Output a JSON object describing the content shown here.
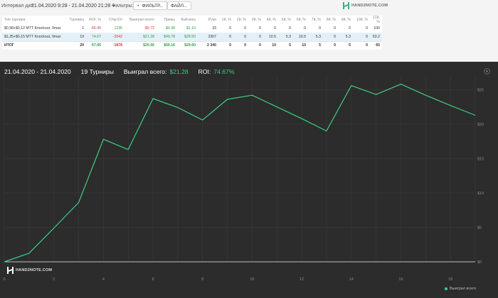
{
  "toolbar": {
    "interval_label": "Интервал дат:",
    "interval_value": "21.04.2020 9:28 - 21.04.2020 21:28",
    "filters_label": "Фильтры:",
    "filter_button": "ФИЛЬТР...",
    "file_button": "ФАЙЛ...",
    "logo_text": "HAND2NOTE.COM"
  },
  "table": {
    "headers": [
      "Тип турнира",
      "Турниры",
      "ROI, %",
      "Chip EV",
      "Выиграл всего",
      "Призы",
      "Бай-ины",
      "Руки",
      "1й, %",
      "2й, %",
      "3й, %",
      "4й, %",
      "5й, %",
      "6й, %",
      "7й, %",
      "8й, %",
      "9й, %",
      "10й, %",
      "11й, %"
    ],
    "rows": [
      [
        "$0,98+$0,12 MTT Knockout, 9max",
        "1",
        "-65.45",
        "1236",
        "-$0.72",
        "$0.38",
        "$1.10",
        "33",
        "0",
        "0",
        "0",
        "0",
        "0",
        "0",
        "0",
        "0",
        "0",
        "0",
        "100"
      ],
      [
        "$1,35+$0,15 MTT Knockout, 9max",
        "19",
        "74.67",
        "-2042",
        "$21.28",
        "$49.78",
        "$28.50",
        "2307",
        "0",
        "0",
        "0",
        "10.5",
        "5.3",
        "10.5",
        "5.3",
        "0",
        "5.3",
        "0",
        "63.2"
      ],
      [
        "ИТОГ",
        "20",
        "67.66",
        "-1878",
        "$20.56",
        "$50.16",
        "$29.60",
        "2 340",
        "0",
        "0",
        "0",
        "10",
        "5",
        "10",
        "5",
        "0",
        "5",
        "0",
        "65"
      ]
    ]
  },
  "chart_header": {
    "date_range": "21.04.2020 - 21.04.2020",
    "tournaments": "19 Турниры",
    "won_label": "Выиграл всего:",
    "won_value": "$21.28",
    "roi_label": "ROI:",
    "roi_value": "74.67%"
  },
  "colors": {
    "line": "#3fce86",
    "panel": "#2c2c2c",
    "grid": "#3a3a3a",
    "positive": "#2e9e43",
    "negative": "#cc3a36"
  },
  "chart_logo": "HAND2NOTE.COM",
  "chart_data": {
    "type": "line",
    "x": [
      0,
      1,
      2,
      3,
      4,
      5,
      6,
      7,
      8,
      9,
      10,
      11,
      12,
      13,
      14,
      15,
      16,
      17,
      18,
      19
    ],
    "series": [
      {
        "name": "Выиграл всего",
        "values": [
          0,
          1.25,
          4.9,
          8.6,
          17.8,
          16.3,
          23.7,
          22.4,
          20.6,
          23.6,
          24.2,
          22.5,
          20.8,
          19.0,
          25.6,
          24.3,
          25.8,
          24.2,
          22.7,
          21.28
        ]
      }
    ],
    "x_ticks": [
      0,
      2,
      4,
      6,
      8,
      10,
      12,
      14,
      16,
      18
    ],
    "y_ticks": [
      0,
      5,
      10,
      15,
      20,
      25
    ],
    "y_tick_labels": [
      "$0",
      "$5",
      "$10",
      "$15",
      "$20",
      "$25"
    ],
    "xlim": [
      0,
      19
    ],
    "ylim": [
      0,
      27
    ],
    "grid": true,
    "legend_position": "bottom-right"
  }
}
